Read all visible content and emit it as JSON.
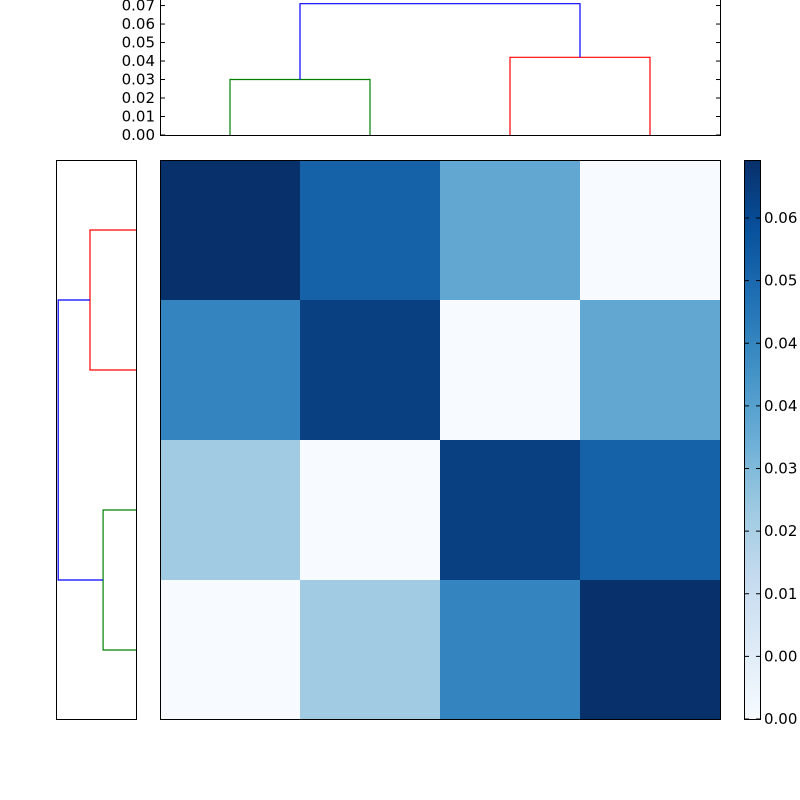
{
  "chart_data": {
    "type": "heatmap",
    "title": "",
    "colormap": "Blues",
    "heatmap": {
      "rows": 4,
      "cols": 4,
      "values": [
        [
          0.068,
          0.055,
          0.036,
          0.0
        ],
        [
          0.046,
          0.064,
          0.0,
          0.036
        ],
        [
          0.025,
          0.0,
          0.064,
          0.055
        ],
        [
          0.0,
          0.025,
          0.046,
          0.068
        ]
      ],
      "vmin": 0.0,
      "vmax": 0.068
    },
    "colorbar": {
      "tick_labels": [
        "0.00",
        "0.00",
        "0.01",
        "0.02",
        "0.03",
        "0.04",
        "0.04",
        "0.05",
        "0.06"
      ]
    },
    "top_dendrogram": {
      "ylim": [
        0.0,
        0.073
      ],
      "tick_labels": [
        "0.00",
        "0.01",
        "0.02",
        "0.03",
        "0.04",
        "0.05",
        "0.06",
        "0.07"
      ],
      "links": [
        {
          "color": "#008000",
          "x": [
            0.5,
            0.5,
            1.5,
            1.5
          ],
          "y": [
            0.0,
            0.03,
            0.03,
            0.0
          ]
        },
        {
          "color": "#ff0000",
          "x": [
            2.5,
            2.5,
            3.5,
            3.5
          ],
          "y": [
            0.0,
            0.042,
            0.042,
            0.0
          ]
        },
        {
          "color": "#0000ff",
          "x": [
            1.0,
            1.0,
            3.0,
            3.0
          ],
          "y": [
            0.03,
            0.071,
            0.071,
            0.042
          ]
        }
      ]
    },
    "left_dendrogram": {
      "xlim": [
        0.0,
        0.073
      ],
      "links": [
        {
          "color": "#ff0000",
          "leaf": [
            0.5,
            1.5
          ],
          "height": 0.042
        },
        {
          "color": "#008000",
          "leaf": [
            2.5,
            3.5
          ],
          "height": 0.03
        },
        {
          "color": "#0000ff",
          "leaf": [
            1.0,
            3.0
          ],
          "child_heights": [
            0.042,
            0.03
          ],
          "height": 0.071
        }
      ]
    },
    "grid": false,
    "legend": "none"
  }
}
